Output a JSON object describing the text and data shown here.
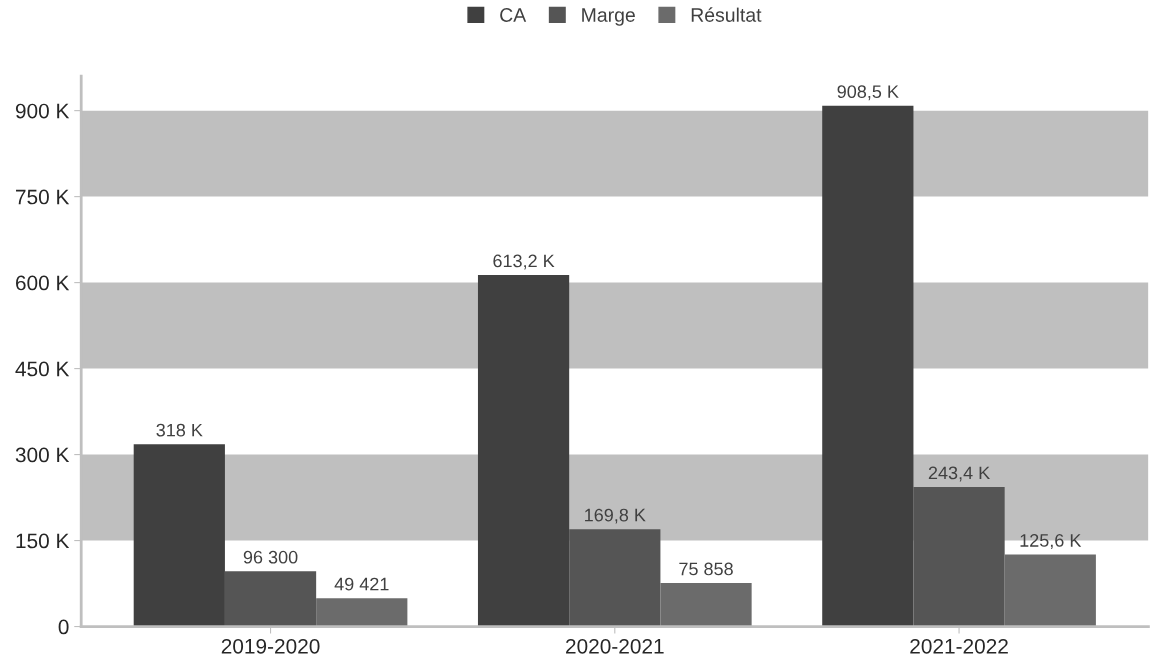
{
  "chart_data": {
    "type": "bar",
    "categories": [
      "2019-2020",
      "2020-2021",
      "2021-2022"
    ],
    "series": [
      {
        "name": "CA",
        "color": "#404040",
        "values": [
          318000,
          613200,
          908500
        ],
        "value_labels": [
          "318 K",
          "613,2 K",
          "908,5 K"
        ]
      },
      {
        "name": "Marge",
        "color": "#555555",
        "values": [
          96300,
          169800,
          243400
        ],
        "value_labels": [
          "96 300",
          "169,8 K",
          "243,4 K"
        ]
      },
      {
        "name": "Résultat",
        "color": "#6b6b6b",
        "values": [
          49421,
          75858,
          125600
        ],
        "value_labels": [
          "49 421",
          "75 858",
          "125,6 K"
        ]
      }
    ],
    "ylim": [
      0,
      960000
    ],
    "yticks": [
      0,
      {
        "value": 150000,
        "label": "150 K"
      },
      {
        "value": 300000,
        "label": "300 K"
      },
      {
        "value": 450000,
        "label": "450 K"
      },
      {
        "value": 600000,
        "label": "600 K"
      },
      {
        "value": 750000,
        "label": "750 K"
      },
      {
        "value": 900000,
        "label": "900 K"
      }
    ],
    "bands": [
      {
        "axis": "y",
        "from": 150000,
        "to": 300000,
        "color": "#bfbfbf"
      },
      {
        "axis": "y",
        "from": 450000,
        "to": 600000,
        "color": "#bfbfbf"
      },
      {
        "axis": "y",
        "from": 750000,
        "to": 900000,
        "color": "#bfbfbf"
      }
    ],
    "legend": "top",
    "grid": false
  }
}
